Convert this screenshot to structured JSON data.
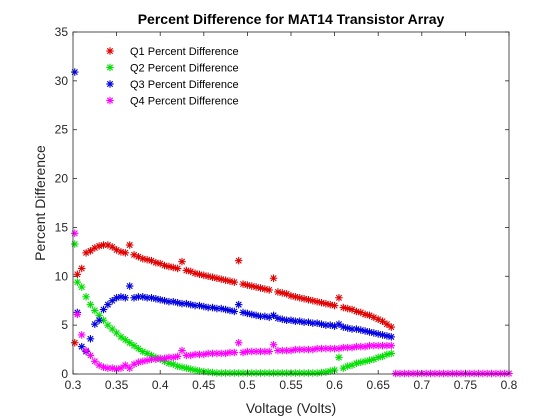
{
  "chart_data": {
    "type": "scatter",
    "title": "Percent Difference for MAT14 Transistor Array",
    "xlabel": "Voltage (Volts)",
    "ylabel": "Percent Difference",
    "xlim": [
      0.3,
      0.8
    ],
    "ylim": [
      0,
      35
    ],
    "xticks": [
      0.3,
      0.35,
      0.4,
      0.45,
      0.5,
      0.55,
      0.6,
      0.65,
      0.7,
      0.75,
      0.8
    ],
    "xtick_labels": [
      "0.3",
      "0.35",
      "0.4",
      "0.45",
      "0.5",
      "0.55",
      "0.6",
      "0.65",
      "0.7",
      "0.75",
      "0.8"
    ],
    "yticks": [
      0,
      5,
      10,
      15,
      20,
      25,
      30,
      35
    ],
    "ytick_labels": [
      "0",
      "5",
      "10",
      "15",
      "20",
      "25",
      "30",
      "35"
    ],
    "grid": false,
    "legend_position": "top-left",
    "marker": "asterisk",
    "series": [
      {
        "name": "Q1 Percent Difference",
        "color": "#e00000",
        "x": [
          0.302,
          0.305,
          0.31,
          0.315,
          0.32,
          0.325,
          0.33,
          0.335,
          0.34,
          0.345,
          0.35,
          0.355,
          0.36,
          0.365,
          0.37,
          0.375,
          0.38,
          0.385,
          0.39,
          0.395,
          0.4,
          0.405,
          0.41,
          0.415,
          0.42,
          0.425,
          0.43,
          0.435,
          0.44,
          0.445,
          0.45,
          0.455,
          0.46,
          0.465,
          0.47,
          0.475,
          0.48,
          0.485,
          0.49,
          0.495,
          0.5,
          0.505,
          0.51,
          0.515,
          0.52,
          0.525,
          0.53,
          0.535,
          0.54,
          0.545,
          0.55,
          0.555,
          0.56,
          0.565,
          0.57,
          0.575,
          0.58,
          0.585,
          0.59,
          0.595,
          0.6,
          0.605,
          0.61,
          0.615,
          0.62,
          0.625,
          0.63,
          0.635,
          0.64,
          0.645,
          0.65,
          0.655,
          0.66,
          0.665
        ],
        "y": [
          3.2,
          10.2,
          10.8,
          12.4,
          12.6,
          12.9,
          13.1,
          13.2,
          13.2,
          13.0,
          12.7,
          12.5,
          12.4,
          13.2,
          12.2,
          12.0,
          11.8,
          11.7,
          11.6,
          11.4,
          11.3,
          11.1,
          11.0,
          10.9,
          10.8,
          11.5,
          10.6,
          10.5,
          10.3,
          10.2,
          10.1,
          10.0,
          9.9,
          9.8,
          9.7,
          9.6,
          9.5,
          9.4,
          11.6,
          9.2,
          9.1,
          9.0,
          8.9,
          8.8,
          8.7,
          8.6,
          9.8,
          8.4,
          8.3,
          8.2,
          8.0,
          7.9,
          7.8,
          7.7,
          7.6,
          7.5,
          7.4,
          7.3,
          7.2,
          7.1,
          7.0,
          7.8,
          6.8,
          6.7,
          6.6,
          6.4,
          6.3,
          6.1,
          6.0,
          5.8,
          5.6,
          5.4,
          5.1,
          4.8
        ]
      },
      {
        "name": "Q2 Percent Difference",
        "color": "#00e000",
        "x": [
          0.302,
          0.305,
          0.31,
          0.315,
          0.32,
          0.325,
          0.33,
          0.335,
          0.34,
          0.345,
          0.35,
          0.355,
          0.36,
          0.365,
          0.37,
          0.375,
          0.38,
          0.385,
          0.39,
          0.395,
          0.4,
          0.405,
          0.41,
          0.415,
          0.42,
          0.425,
          0.43,
          0.435,
          0.44,
          0.445,
          0.45,
          0.455,
          0.46,
          0.465,
          0.47,
          0.475,
          0.48,
          0.485,
          0.49,
          0.495,
          0.5,
          0.505,
          0.51,
          0.515,
          0.52,
          0.525,
          0.53,
          0.535,
          0.54,
          0.545,
          0.55,
          0.555,
          0.56,
          0.565,
          0.57,
          0.575,
          0.58,
          0.585,
          0.59,
          0.595,
          0.6,
          0.605,
          0.61,
          0.615,
          0.62,
          0.625,
          0.63,
          0.635,
          0.64,
          0.645,
          0.65,
          0.655,
          0.66,
          0.665
        ],
        "y": [
          13.3,
          9.4,
          8.9,
          7.9,
          7.1,
          6.5,
          6.0,
          5.5,
          5.0,
          4.6,
          4.2,
          3.8,
          3.5,
          3.2,
          2.9,
          2.6,
          2.3,
          2.1,
          1.9,
          1.7,
          1.5,
          1.3,
          1.1,
          1.0,
          0.8,
          0.7,
          0.6,
          0.5,
          0.4,
          0.3,
          0.25,
          0.2,
          0.15,
          0.1,
          0.1,
          0.1,
          0.1,
          0.1,
          0.1,
          0.1,
          0.1,
          0.1,
          0.1,
          0.1,
          0.1,
          0.1,
          0.1,
          0.1,
          0.1,
          0.1,
          0.1,
          0.1,
          0.1,
          0.1,
          0.1,
          0.1,
          0.1,
          0.15,
          0.2,
          0.3,
          0.4,
          1.7,
          0.6,
          0.8,
          0.9,
          1.1,
          1.2,
          1.3,
          1.4,
          1.5,
          1.7,
          1.8,
          2.0,
          2.1
        ]
      },
      {
        "name": "Q3 Percent Difference",
        "color": "#0000e0",
        "x": [
          0.302,
          0.305,
          0.31,
          0.315,
          0.32,
          0.325,
          0.33,
          0.335,
          0.34,
          0.345,
          0.35,
          0.355,
          0.36,
          0.365,
          0.37,
          0.375,
          0.38,
          0.385,
          0.39,
          0.395,
          0.4,
          0.405,
          0.41,
          0.415,
          0.42,
          0.425,
          0.43,
          0.435,
          0.44,
          0.445,
          0.45,
          0.455,
          0.46,
          0.465,
          0.47,
          0.475,
          0.48,
          0.485,
          0.49,
          0.495,
          0.5,
          0.505,
          0.51,
          0.515,
          0.52,
          0.525,
          0.53,
          0.535,
          0.54,
          0.545,
          0.55,
          0.555,
          0.56,
          0.565,
          0.57,
          0.575,
          0.58,
          0.585,
          0.59,
          0.595,
          0.6,
          0.605,
          0.61,
          0.615,
          0.62,
          0.625,
          0.63,
          0.635,
          0.64,
          0.645,
          0.65,
          0.655,
          0.66,
          0.665
        ],
        "y": [
          30.9,
          6.3,
          2.8,
          2.3,
          3.6,
          5.1,
          5.5,
          6.6,
          7.1,
          7.5,
          7.8,
          7.9,
          7.8,
          9.0,
          7.8,
          7.9,
          7.9,
          7.8,
          7.8,
          7.7,
          7.6,
          7.5,
          7.4,
          7.4,
          7.3,
          7.2,
          7.2,
          7.1,
          7.0,
          7.0,
          6.9,
          6.8,
          6.8,
          6.7,
          6.7,
          6.6,
          6.5,
          6.4,
          7.1,
          6.3,
          6.2,
          6.1,
          6.0,
          5.9,
          5.9,
          5.8,
          6.0,
          5.7,
          5.6,
          5.5,
          5.5,
          5.4,
          5.4,
          5.3,
          5.3,
          5.2,
          5.2,
          5.1,
          5.0,
          5.0,
          4.9,
          5.1,
          4.8,
          4.7,
          4.6,
          4.6,
          4.5,
          4.4,
          4.3,
          4.2,
          4.1,
          4.0,
          3.9,
          3.8
        ]
      },
      {
        "name": "Q4 Percent Difference",
        "color": "#ff00ff",
        "x": [
          0.302,
          0.305,
          0.31,
          0.315,
          0.32,
          0.325,
          0.33,
          0.335,
          0.34,
          0.345,
          0.35,
          0.355,
          0.36,
          0.365,
          0.37,
          0.375,
          0.38,
          0.385,
          0.39,
          0.395,
          0.4,
          0.405,
          0.41,
          0.415,
          0.42,
          0.425,
          0.43,
          0.435,
          0.44,
          0.445,
          0.45,
          0.455,
          0.46,
          0.465,
          0.47,
          0.475,
          0.48,
          0.485,
          0.49,
          0.495,
          0.5,
          0.505,
          0.51,
          0.515,
          0.52,
          0.525,
          0.53,
          0.535,
          0.54,
          0.545,
          0.55,
          0.555,
          0.56,
          0.565,
          0.57,
          0.575,
          0.58,
          0.585,
          0.59,
          0.595,
          0.6,
          0.605,
          0.61,
          0.615,
          0.62,
          0.625,
          0.63,
          0.635,
          0.64,
          0.645,
          0.65,
          0.655,
          0.66,
          0.665,
          0.67,
          0.675,
          0.68,
          0.685,
          0.69,
          0.695,
          0.7,
          0.705,
          0.71,
          0.715,
          0.72,
          0.725,
          0.73,
          0.735,
          0.74,
          0.745,
          0.75,
          0.755,
          0.76,
          0.765,
          0.77,
          0.775,
          0.78,
          0.785,
          0.79,
          0.795,
          0.8
        ],
        "y": [
          14.4,
          6.1,
          4.0,
          2.4,
          1.9,
          1.3,
          0.9,
          0.7,
          0.6,
          0.6,
          0.5,
          0.6,
          0.9,
          0.6,
          1.0,
          1.2,
          1.3,
          1.4,
          1.5,
          1.5,
          1.6,
          1.6,
          1.7,
          1.7,
          1.8,
          2.4,
          1.9,
          1.9,
          2.0,
          2.0,
          2.0,
          2.1,
          2.1,
          2.1,
          2.1,
          2.1,
          2.2,
          2.2,
          3.2,
          2.2,
          2.3,
          2.3,
          2.3,
          2.3,
          2.3,
          2.3,
          3.0,
          2.4,
          2.4,
          2.4,
          2.4,
          2.5,
          2.5,
          2.5,
          2.5,
          2.5,
          2.6,
          2.6,
          2.6,
          2.6,
          2.6,
          2.6,
          2.7,
          2.7,
          2.7,
          2.8,
          2.8,
          2.8,
          2.9,
          2.9,
          2.9,
          2.9,
          2.9,
          2.9,
          0.05,
          0.05,
          0.05,
          0.05,
          0.05,
          0.05,
          0.05,
          0.05,
          0.05,
          0.05,
          0.05,
          0.05,
          0.05,
          0.05,
          0.05,
          0.05,
          0.05,
          0.05,
          0.05,
          0.05,
          0.05,
          0.05,
          0.05,
          0.05,
          0.05,
          0.05,
          0.05
        ]
      }
    ]
  }
}
